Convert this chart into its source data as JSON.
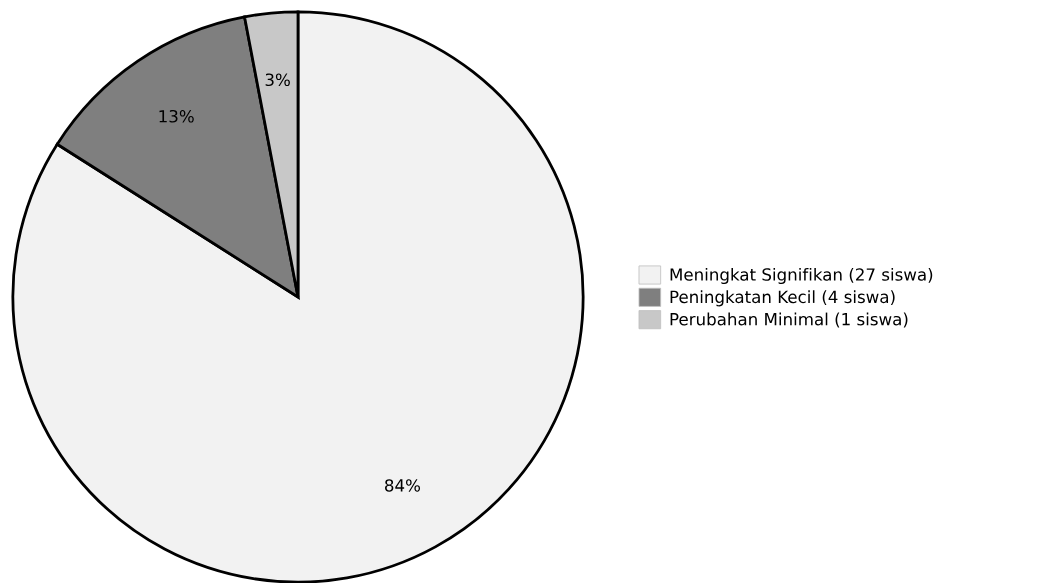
{
  "chart_data": {
    "type": "pie",
    "categories": [
      "Meningkat Signifikan (27 siswa)",
      "Peningkatan Kecil (4 siswa)",
      "Perubahan Minimal (1 siswa)"
    ],
    "values": [
      84,
      13,
      3
    ],
    "colors": [
      "#f2f2f2",
      "#7f7f7f",
      "#c8c8c8"
    ],
    "value_labels": [
      "84%",
      "13%",
      "3%"
    ],
    "legend": "right"
  }
}
